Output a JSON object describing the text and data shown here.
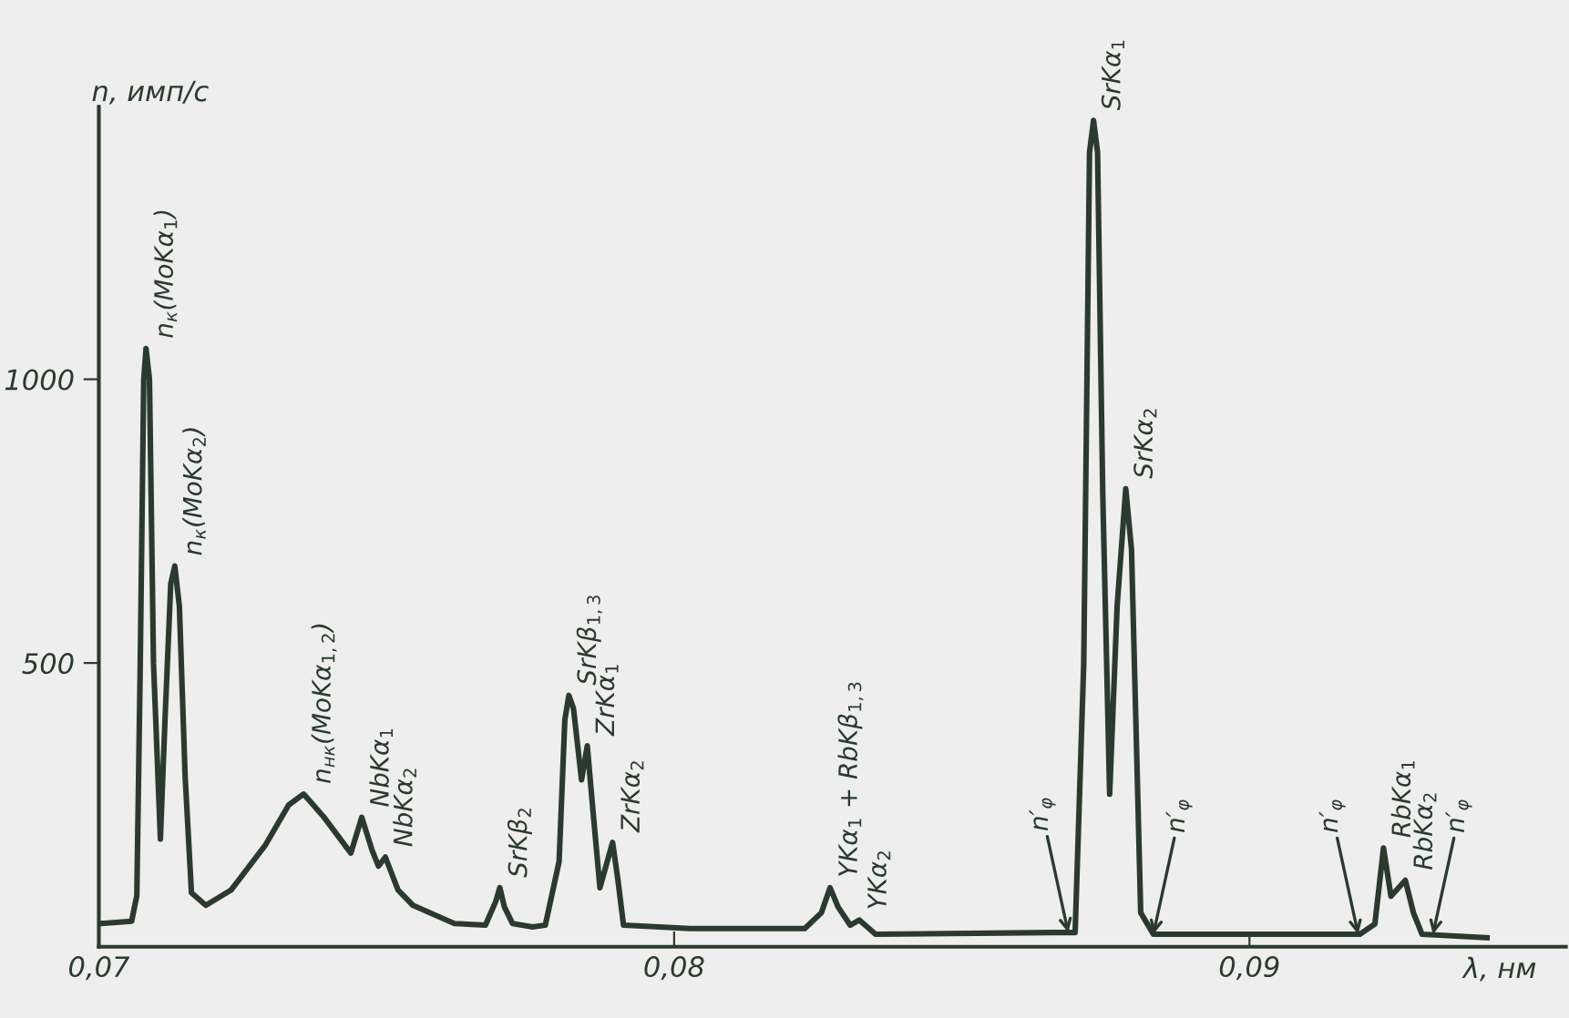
{
  "chart_data": {
    "type": "line",
    "xlabel": "λ, нм",
    "ylabel": "n, имп/с",
    "x": [
      0.07003,
      0.07057,
      0.07066,
      0.07072,
      0.07078,
      0.07082,
      0.07088,
      0.07095,
      0.07107,
      0.07115,
      0.07125,
      0.07132,
      0.0714,
      0.0715,
      0.07161,
      0.07186,
      0.0723,
      0.0729,
      0.0733,
      0.07356,
      0.0739,
      0.07438,
      0.07457,
      0.07475,
      0.07486,
      0.07498,
      0.0752,
      0.07546,
      0.07618,
      0.07672,
      0.0769,
      0.07697,
      0.07705,
      0.07719,
      0.07754,
      0.07776,
      0.078,
      0.0781,
      0.07817,
      0.07825,
      0.07839,
      0.07849,
      0.07858,
      0.07871,
      0.07893,
      0.07902,
      0.07912,
      0.08028,
      0.08227,
      0.08256,
      0.08271,
      0.08285,
      0.08306,
      0.08322,
      0.0835,
      0.08659,
      0.08697,
      0.08712,
      0.08722,
      0.08729,
      0.08736,
      0.08745,
      0.08757,
      0.0877,
      0.08785,
      0.08795,
      0.08805,
      0.08811,
      0.08833,
      0.09192,
      0.09218,
      0.09233,
      0.09246,
      0.09271,
      0.09285,
      0.093,
      0.09413
    ],
    "series": [
      {
        "color": "#2b3a2e",
        "values": [
          41,
          45,
          90,
          500,
          1000,
          1054,
          1000,
          500,
          190,
          400,
          640,
          671,
          600,
          300,
          95,
          73,
          100,
          180,
          250,
          269,
          230,
          165,
          228,
          170,
          142,
          158,
          100,
          73,
          41,
          38,
          80,
          104,
          70,
          41,
          35,
          38,
          150,
          400,
          443,
          420,
          294,
          354,
          250,
          104,
          184,
          120,
          38,
          32,
          32,
          60,
          104,
          70,
          38,
          47,
          22,
          25,
          25,
          500,
          1400,
          1456,
          1400,
          800,
          269,
          600,
          807,
          700,
          300,
          60,
          22,
          22,
          40,
          174,
          89,
          117,
          60,
          22,
          16
        ]
      }
    ],
    "xlim": [
      0.07,
      0.0955
    ],
    "ylim": [
      0,
      1480
    ],
    "xticks": [
      {
        "value": 0.07,
        "label": "0,07"
      },
      {
        "value": 0.08,
        "label": "0,08"
      },
      {
        "value": 0.09,
        "label": "0,09"
      }
    ],
    "yticks": [
      500,
      1000
    ],
    "grid": false,
    "legend": false,
    "marker": "none",
    "line_style": "solid",
    "annotations": [
      {
        "text": "n$_{к}$(MoKα$_{1}$)",
        "x": 0.07082,
        "y": 1054
      },
      {
        "text": "n$_{к}$(MoKα$_{2}$)",
        "x": 0.07132,
        "y": 671
      },
      {
        "text": "n$_{нк}$(MoKα$_{1,2}$)",
        "x": 0.07356,
        "y": 269
      },
      {
        "text": "NbKα$_{1}$",
        "x": 0.07457,
        "y": 228
      },
      {
        "text": "NbKα$_{2}$",
        "x": 0.07498,
        "y": 158
      },
      {
        "text": "SrKβ$_{2}$",
        "x": 0.07697,
        "y": 104
      },
      {
        "text": "SrKβ$_{1,3}$",
        "x": 0.07817,
        "y": 443
      },
      {
        "text": "ZrKα$_{1}$",
        "x": 0.07849,
        "y": 354
      },
      {
        "text": "ZrKα$_{2}$",
        "x": 0.07893,
        "y": 184
      },
      {
        "text": "YKα$_{1}$ + RbKβ$_{1,3}$",
        "x": 0.08271,
        "y": 104
      },
      {
        "text": "YKα$_{2}$",
        "x": 0.08322,
        "y": 47
      },
      {
        "text": "SrKα$_{1}$",
        "x": 0.08729,
        "y": 1456
      },
      {
        "text": "SrKα$_{2}$",
        "x": 0.08785,
        "y": 807
      },
      {
        "text": "RbKα$_{1}$",
        "x": 0.09233,
        "y": 174
      },
      {
        "text": "RbKα$_{2}$",
        "x": 0.09271,
        "y": 117
      },
      {
        "text": "n′$_{φ}$",
        "x": 0.08685,
        "y": 25
      },
      {
        "text": "n′$_{φ}$",
        "x": 0.08833,
        "y": 22
      },
      {
        "text": "n′$_{φ}$",
        "x": 0.09189,
        "y": 22
      },
      {
        "text": "n′$_{φ}$",
        "x": 0.09319,
        "y": 22
      }
    ]
  }
}
